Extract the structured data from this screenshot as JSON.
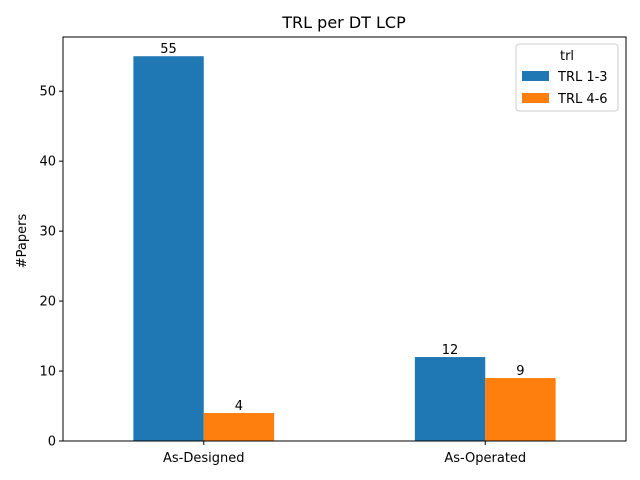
{
  "chart_data": {
    "type": "bar",
    "title": "TRL per DT LCP",
    "xlabel": "",
    "ylabel": "#Papers",
    "categories": [
      "As-Designed",
      "As-Operated"
    ],
    "series": [
      {
        "name": "TRL 1-3",
        "values": [
          55,
          12
        ],
        "color": "#1f77b4"
      },
      {
        "name": "TRL 4-6",
        "values": [
          4,
          9
        ],
        "color": "#ff7f0e"
      }
    ],
    "ylim": [
      0,
      57.75
    ],
    "yticks": [
      0,
      10,
      20,
      30,
      40,
      50
    ],
    "grid": false,
    "legend": {
      "title": "trl",
      "position": "top-right"
    },
    "bar_labels": true
  }
}
